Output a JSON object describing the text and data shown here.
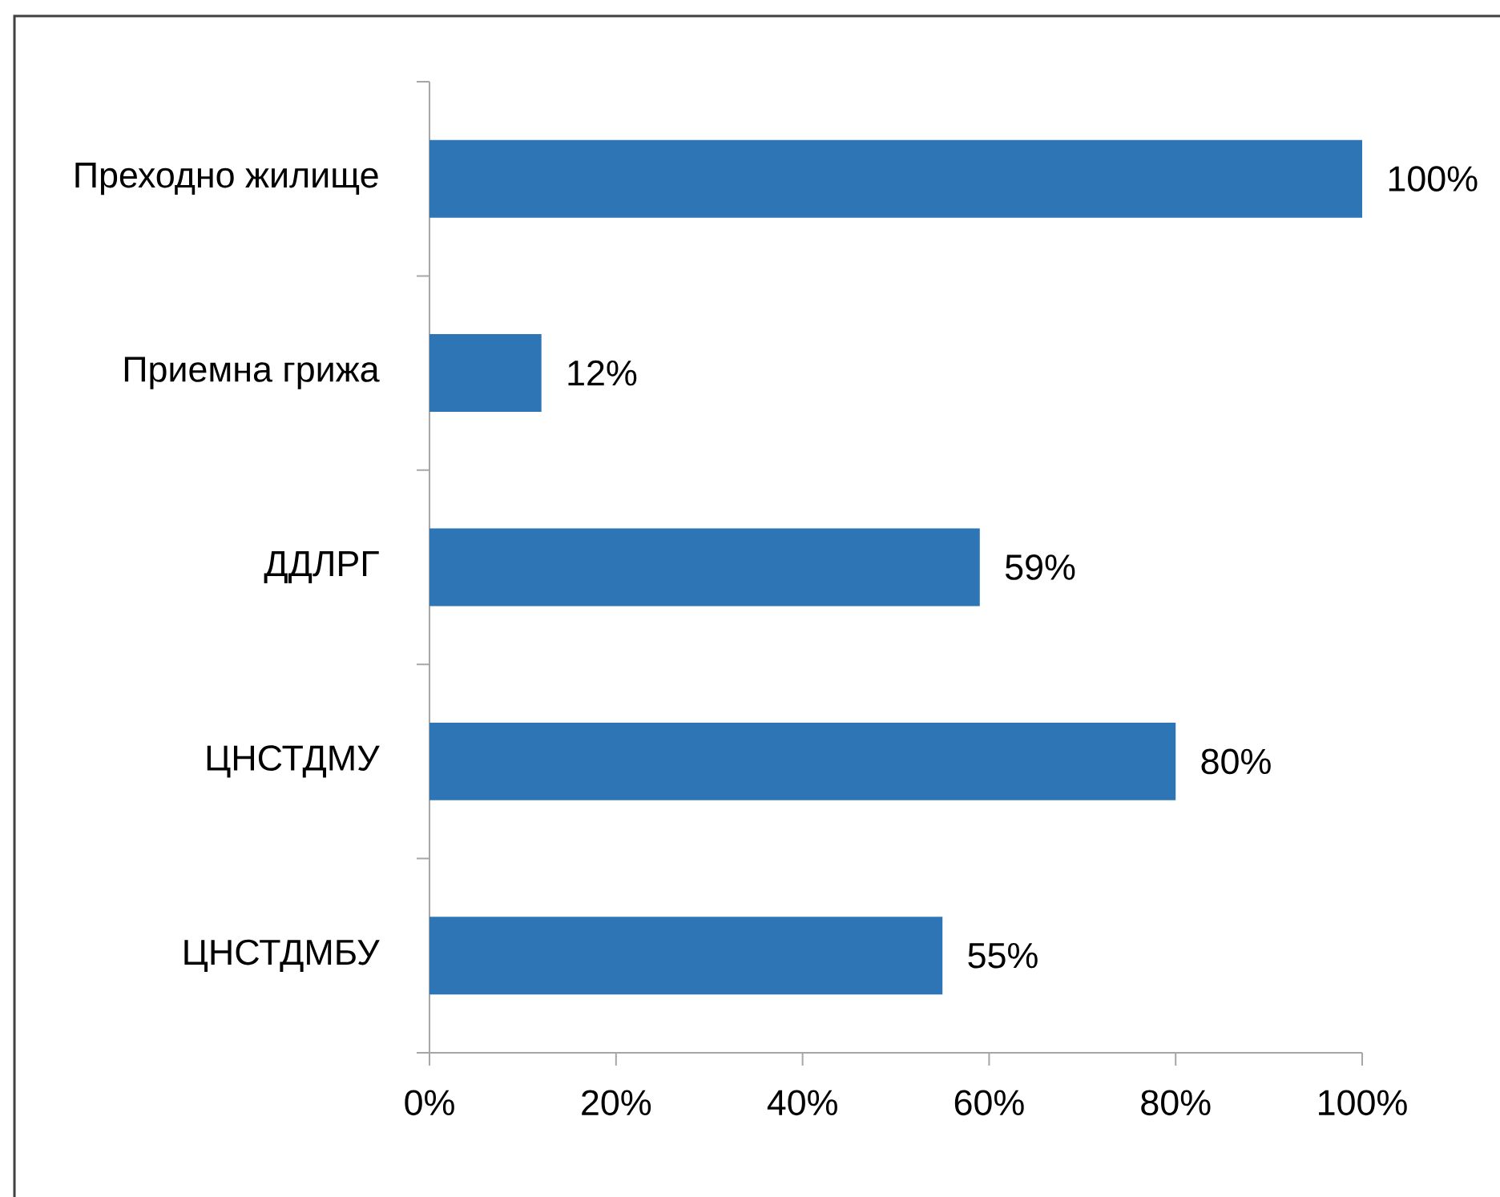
{
  "chart_data": {
    "type": "bar",
    "orientation": "horizontal",
    "categories": [
      "Преходно жилище",
      "Приемна грижа",
      "ДДЛРГ",
      "ЦНСТДМУ",
      "ЦНСТДМБУ"
    ],
    "values": [
      100,
      12,
      59,
      80,
      55
    ],
    "value_labels": [
      "100%",
      "12%",
      "59%",
      "80%",
      "55%"
    ],
    "color": "#2e75b6",
    "xlim": [
      0,
      100
    ],
    "xticks": [
      {
        "value": 0,
        "label": "0%"
      },
      {
        "value": 20,
        "label": "20%"
      },
      {
        "value": 40,
        "label": "40%"
      },
      {
        "value": 60,
        "label": "60%"
      },
      {
        "value": 80,
        "label": "80%"
      },
      {
        "value": 100,
        "label": "100%"
      }
    ]
  }
}
